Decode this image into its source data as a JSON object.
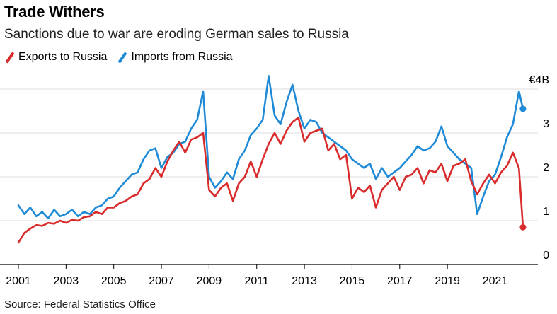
{
  "title": "Trade Withers",
  "subtitle": "Sanctions due to war are eroding German sales to Russia",
  "source": "Source: Federal Statistics Office",
  "colors": {
    "exports": "#d92b2b",
    "imports": "#1f8ad6",
    "grid": "#dcdcdc",
    "axis": "#000000"
  },
  "chart_data": {
    "type": "line",
    "title": "Trade Withers",
    "subtitle": "Sanctions due to war are eroding German sales to Russia",
    "xlabel": "",
    "ylabel": "",
    "ylim": [
      0,
      4
    ],
    "xlim": [
      2001,
      2022.5
    ],
    "grid": true,
    "legend": "top-left",
    "y_ticks": [
      {
        "value": 4,
        "label": "€4B"
      },
      {
        "value": 3,
        "label": "3"
      },
      {
        "value": 2,
        "label": "2"
      },
      {
        "value": 1,
        "label": "1"
      },
      {
        "value": 0,
        "label": "0"
      }
    ],
    "x_ticks": [
      "2001",
      "2003",
      "2005",
      "2007",
      "2009",
      "2011",
      "2013",
      "2015",
      "2017",
      "2019",
      "2021"
    ],
    "series": [
      {
        "name": "Exports to Russia",
        "color": "#d92b2b",
        "points": [
          [
            2001.0,
            0.5
          ],
          [
            2001.25,
            0.72
          ],
          [
            2001.5,
            0.82
          ],
          [
            2001.75,
            0.9
          ],
          [
            2002.0,
            0.88
          ],
          [
            2002.25,
            0.95
          ],
          [
            2002.5,
            0.93
          ],
          [
            2002.75,
            1.0
          ],
          [
            2003.0,
            0.95
          ],
          [
            2003.25,
            1.02
          ],
          [
            2003.5,
            1.0
          ],
          [
            2003.75,
            1.08
          ],
          [
            2004.0,
            1.1
          ],
          [
            2004.25,
            1.2
          ],
          [
            2004.5,
            1.15
          ],
          [
            2004.75,
            1.3
          ],
          [
            2005.0,
            1.3
          ],
          [
            2005.25,
            1.4
          ],
          [
            2005.5,
            1.45
          ],
          [
            2005.75,
            1.55
          ],
          [
            2006.0,
            1.6
          ],
          [
            2006.25,
            1.85
          ],
          [
            2006.5,
            1.95
          ],
          [
            2006.75,
            2.2
          ],
          [
            2007.0,
            2.0
          ],
          [
            2007.25,
            2.35
          ],
          [
            2007.5,
            2.6
          ],
          [
            2007.75,
            2.8
          ],
          [
            2008.0,
            2.55
          ],
          [
            2008.25,
            2.85
          ],
          [
            2008.5,
            2.9
          ],
          [
            2008.75,
            3.0
          ],
          [
            2009.0,
            1.7
          ],
          [
            2009.25,
            1.55
          ],
          [
            2009.5,
            1.75
          ],
          [
            2009.75,
            1.85
          ],
          [
            2010.0,
            1.45
          ],
          [
            2010.25,
            1.85
          ],
          [
            2010.5,
            2.0
          ],
          [
            2010.75,
            2.35
          ],
          [
            2011.0,
            2.0
          ],
          [
            2011.25,
            2.4
          ],
          [
            2011.5,
            2.75
          ],
          [
            2011.75,
            3.0
          ],
          [
            2012.0,
            2.75
          ],
          [
            2012.25,
            3.05
          ],
          [
            2012.5,
            3.25
          ],
          [
            2012.75,
            3.35
          ],
          [
            2013.0,
            2.8
          ],
          [
            2013.25,
            3.0
          ],
          [
            2013.5,
            3.05
          ],
          [
            2013.75,
            3.1
          ],
          [
            2014.0,
            2.6
          ],
          [
            2014.25,
            2.75
          ],
          [
            2014.5,
            2.4
          ],
          [
            2014.75,
            2.5
          ],
          [
            2015.0,
            1.5
          ],
          [
            2015.25,
            1.75
          ],
          [
            2015.5,
            1.65
          ],
          [
            2015.75,
            1.8
          ],
          [
            2016.0,
            1.3
          ],
          [
            2016.25,
            1.7
          ],
          [
            2016.5,
            1.85
          ],
          [
            2016.75,
            2.0
          ],
          [
            2017.0,
            1.7
          ],
          [
            2017.25,
            2.0
          ],
          [
            2017.5,
            2.05
          ],
          [
            2017.75,
            2.2
          ],
          [
            2018.0,
            1.85
          ],
          [
            2018.25,
            2.15
          ],
          [
            2018.5,
            2.1
          ],
          [
            2018.75,
            2.3
          ],
          [
            2019.0,
            1.9
          ],
          [
            2019.25,
            2.25
          ],
          [
            2019.5,
            2.3
          ],
          [
            2019.75,
            2.4
          ],
          [
            2020.0,
            1.9
          ],
          [
            2020.25,
            1.6
          ],
          [
            2020.5,
            1.85
          ],
          [
            2020.75,
            2.05
          ],
          [
            2021.0,
            1.85
          ],
          [
            2021.25,
            2.1
          ],
          [
            2021.5,
            2.25
          ],
          [
            2021.75,
            2.55
          ],
          [
            2022.0,
            2.2
          ],
          [
            2022.17,
            0.85
          ]
        ]
      },
      {
        "name": "Imports from Russia",
        "color": "#1f8ad6",
        "points": [
          [
            2001.0,
            1.35
          ],
          [
            2001.25,
            1.15
          ],
          [
            2001.5,
            1.3
          ],
          [
            2001.75,
            1.1
          ],
          [
            2002.0,
            1.2
          ],
          [
            2002.25,
            1.05
          ],
          [
            2002.5,
            1.25
          ],
          [
            2002.75,
            1.1
          ],
          [
            2003.0,
            1.15
          ],
          [
            2003.25,
            1.25
          ],
          [
            2003.5,
            1.1
          ],
          [
            2003.75,
            1.2
          ],
          [
            2004.0,
            1.15
          ],
          [
            2004.25,
            1.3
          ],
          [
            2004.5,
            1.35
          ],
          [
            2004.75,
            1.5
          ],
          [
            2005.0,
            1.55
          ],
          [
            2005.25,
            1.75
          ],
          [
            2005.5,
            1.9
          ],
          [
            2005.75,
            2.05
          ],
          [
            2006.0,
            2.1
          ],
          [
            2006.25,
            2.4
          ],
          [
            2006.5,
            2.6
          ],
          [
            2006.75,
            2.65
          ],
          [
            2007.0,
            2.2
          ],
          [
            2007.25,
            2.45
          ],
          [
            2007.5,
            2.55
          ],
          [
            2007.75,
            2.75
          ],
          [
            2008.0,
            2.8
          ],
          [
            2008.25,
            3.1
          ],
          [
            2008.5,
            3.3
          ],
          [
            2008.75,
            3.95
          ],
          [
            2009.0,
            2.0
          ],
          [
            2009.25,
            1.75
          ],
          [
            2009.5,
            1.9
          ],
          [
            2009.75,
            2.1
          ],
          [
            2010.0,
            1.95
          ],
          [
            2010.25,
            2.4
          ],
          [
            2010.5,
            2.6
          ],
          [
            2010.75,
            2.95
          ],
          [
            2011.0,
            3.1
          ],
          [
            2011.25,
            3.3
          ],
          [
            2011.5,
            4.3
          ],
          [
            2011.75,
            3.4
          ],
          [
            2012.0,
            3.2
          ],
          [
            2012.25,
            3.7
          ],
          [
            2012.5,
            4.1
          ],
          [
            2012.75,
            3.5
          ],
          [
            2013.0,
            3.1
          ],
          [
            2013.25,
            3.3
          ],
          [
            2013.5,
            3.25
          ],
          [
            2013.75,
            3.0
          ],
          [
            2014.0,
            2.9
          ],
          [
            2014.25,
            2.8
          ],
          [
            2014.5,
            2.7
          ],
          [
            2014.75,
            2.6
          ],
          [
            2015.0,
            2.4
          ],
          [
            2015.25,
            2.3
          ],
          [
            2015.5,
            2.2
          ],
          [
            2015.75,
            2.3
          ],
          [
            2016.0,
            1.95
          ],
          [
            2016.25,
            2.2
          ],
          [
            2016.5,
            2.0
          ],
          [
            2016.75,
            2.1
          ],
          [
            2017.0,
            2.2
          ],
          [
            2017.25,
            2.35
          ],
          [
            2017.5,
            2.5
          ],
          [
            2017.75,
            2.7
          ],
          [
            2018.0,
            2.6
          ],
          [
            2018.25,
            2.65
          ],
          [
            2018.5,
            2.8
          ],
          [
            2018.75,
            3.15
          ],
          [
            2019.0,
            2.7
          ],
          [
            2019.25,
            2.55
          ],
          [
            2019.5,
            2.4
          ],
          [
            2019.75,
            2.3
          ],
          [
            2020.0,
            2.2
          ],
          [
            2020.25,
            1.15
          ],
          [
            2020.5,
            1.55
          ],
          [
            2020.75,
            1.9
          ],
          [
            2021.0,
            2.05
          ],
          [
            2021.25,
            2.45
          ],
          [
            2021.5,
            2.9
          ],
          [
            2021.75,
            3.2
          ],
          [
            2022.0,
            3.95
          ],
          [
            2022.17,
            3.55
          ]
        ]
      }
    ]
  }
}
